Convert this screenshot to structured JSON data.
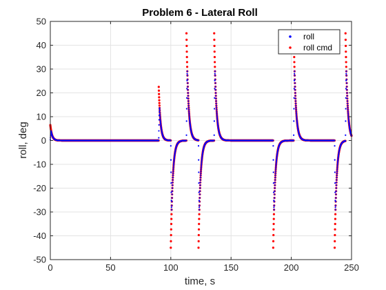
{
  "chart_data": {
    "type": "scatter",
    "title": "Problem 6 - Lateral Roll",
    "xlabel": "time, s",
    "ylabel": "roll, deg",
    "xlim": [
      0,
      250
    ],
    "ylim": [
      -50,
      50
    ],
    "xticks": [
      0,
      50,
      100,
      150,
      200,
      250
    ],
    "yticks": [
      -50,
      -40,
      -30,
      -20,
      -10,
      0,
      10,
      20,
      30,
      40,
      50
    ],
    "grid": true,
    "legend_position": "top-right",
    "events": [
      {
        "t": 0,
        "amp": 6.5
      },
      {
        "t": 90,
        "amp": 22.5
      },
      {
        "t": 100,
        "amp": -45
      },
      {
        "t": 113,
        "amp": 45
      },
      {
        "t": 123,
        "amp": -45
      },
      {
        "t": 136,
        "amp": 45
      },
      {
        "t": 185,
        "amp": -45
      },
      {
        "t": 202,
        "amp": 45
      },
      {
        "t": 236,
        "amp": -45
      },
      {
        "t": 245,
        "amp": 45
      }
    ],
    "series": [
      {
        "name": "roll",
        "color": "#0000ff",
        "marker": "dot"
      },
      {
        "name": "roll cmd",
        "color": "#ff0000",
        "marker": "dot"
      }
    ]
  }
}
